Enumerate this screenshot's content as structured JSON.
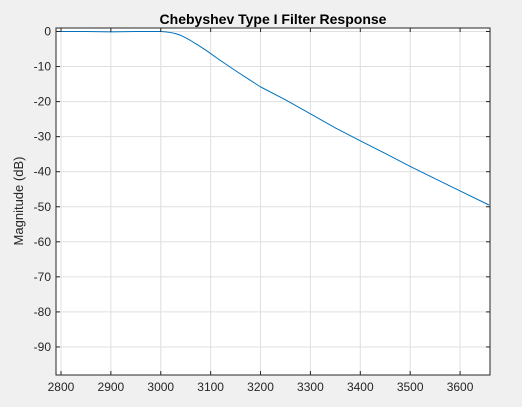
{
  "chart_data": {
    "type": "line",
    "title": "Chebyshev Type I Filter Response",
    "xlabel": "",
    "ylabel": "Magnitude (dB)",
    "xlim": [
      2790,
      3660
    ],
    "ylim": [
      -98,
      1
    ],
    "xticks": [
      2800,
      2900,
      3000,
      3100,
      3200,
      3300,
      3400,
      3500,
      3600
    ],
    "yticks": [
      0,
      -10,
      -20,
      -30,
      -40,
      -50,
      -60,
      -70,
      -80,
      -90
    ],
    "grid": true,
    "series": [
      {
        "color": "#0072bd",
        "x": [
          2795,
          2850,
          2900,
          2950,
          2975,
          3000,
          3010,
          3020,
          3030,
          3040,
          3050,
          3060,
          3075,
          3090,
          3100,
          3120,
          3150,
          3175,
          3200,
          3250,
          3300,
          3350,
          3400,
          3450,
          3500,
          3550,
          3600,
          3658
        ],
        "y": [
          0,
          0,
          -0.1,
          0,
          0,
          0,
          -0.1,
          -0.3,
          -0.6,
          -1.1,
          -1.8,
          -2.6,
          -3.9,
          -5.3,
          -6.3,
          -8.3,
          -11.2,
          -13.5,
          -15.8,
          -19.5,
          -23.5,
          -27.5,
          -31.2,
          -34.8,
          -38.5,
          -42,
          -45.5,
          -49.5
        ]
      }
    ]
  }
}
